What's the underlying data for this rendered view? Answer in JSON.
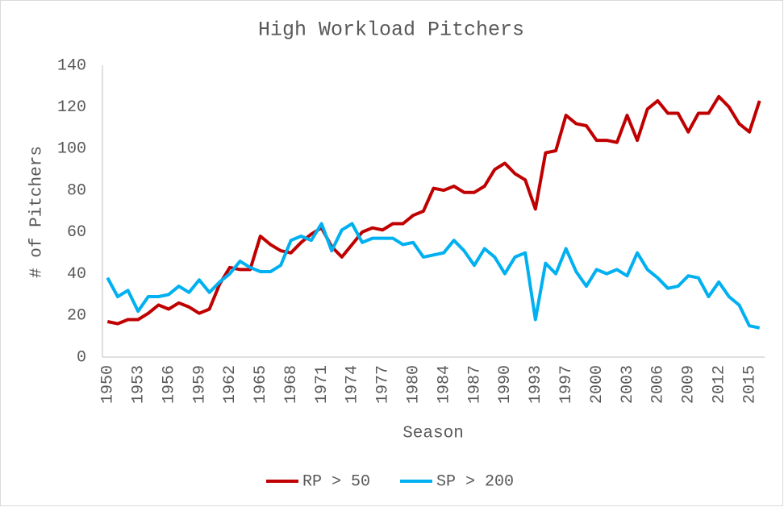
{
  "chart_data": {
    "type": "line",
    "title": "High Workload Pitchers",
    "xlabel": "Season",
    "ylabel": "# of Pitchers",
    "categories": [
      "1950",
      null,
      null,
      "1953",
      null,
      null,
      "1956",
      null,
      null,
      "1959",
      null,
      null,
      "1962",
      null,
      null,
      "1965",
      null,
      null,
      "1968",
      null,
      null,
      "1971",
      null,
      null,
      "1974",
      null,
      null,
      "1977",
      null,
      null,
      "1980",
      null,
      null,
      "1984",
      null,
      null,
      "1987",
      null,
      null,
      "1990",
      null,
      null,
      "1993",
      null,
      null,
      "1997",
      null,
      null,
      "2000",
      null,
      null,
      "2003",
      null,
      null,
      "2006",
      null,
      null,
      "2009",
      null,
      null,
      "2012",
      null,
      null,
      "2015",
      null
    ],
    "series": [
      {
        "name": "RP > 50",
        "color": "#c00000",
        "values": [
          17,
          16,
          18,
          18,
          21,
          25,
          23,
          26,
          24,
          21,
          23,
          35,
          43,
          42,
          42,
          58,
          54,
          51,
          50,
          55,
          59,
          62,
          53,
          48,
          54,
          60,
          62,
          61,
          64,
          64,
          68,
          70,
          81,
          80,
          82,
          79,
          79,
          82,
          90,
          93,
          88,
          85,
          71,
          98,
          99,
          116,
          112,
          111,
          104,
          104,
          103,
          116,
          104,
          119,
          123,
          117,
          117,
          108,
          117,
          117,
          125,
          120,
          112,
          108,
          123
        ]
      },
      {
        "name": "SP > 200",
        "color": "#00b0f0",
        "values": [
          38,
          29,
          32,
          22,
          29,
          29,
          30,
          34,
          31,
          37,
          31,
          36,
          40,
          46,
          43,
          41,
          41,
          44,
          56,
          58,
          56,
          64,
          51,
          61,
          64,
          55,
          57,
          57,
          57,
          54,
          55,
          48,
          49,
          50,
          56,
          51,
          44,
          52,
          48,
          40,
          48,
          50,
          18,
          45,
          40,
          52,
          41,
          34,
          42,
          40,
          42,
          39,
          50,
          42,
          38,
          33,
          34,
          39,
          38,
          29,
          36,
          29,
          25,
          15,
          14
        ]
      }
    ],
    "ylim": [
      0,
      140
    ],
    "yticks": [
      0,
      20,
      40,
      60,
      80,
      100,
      120,
      140
    ],
    "grid": false,
    "legend": "bottom"
  }
}
